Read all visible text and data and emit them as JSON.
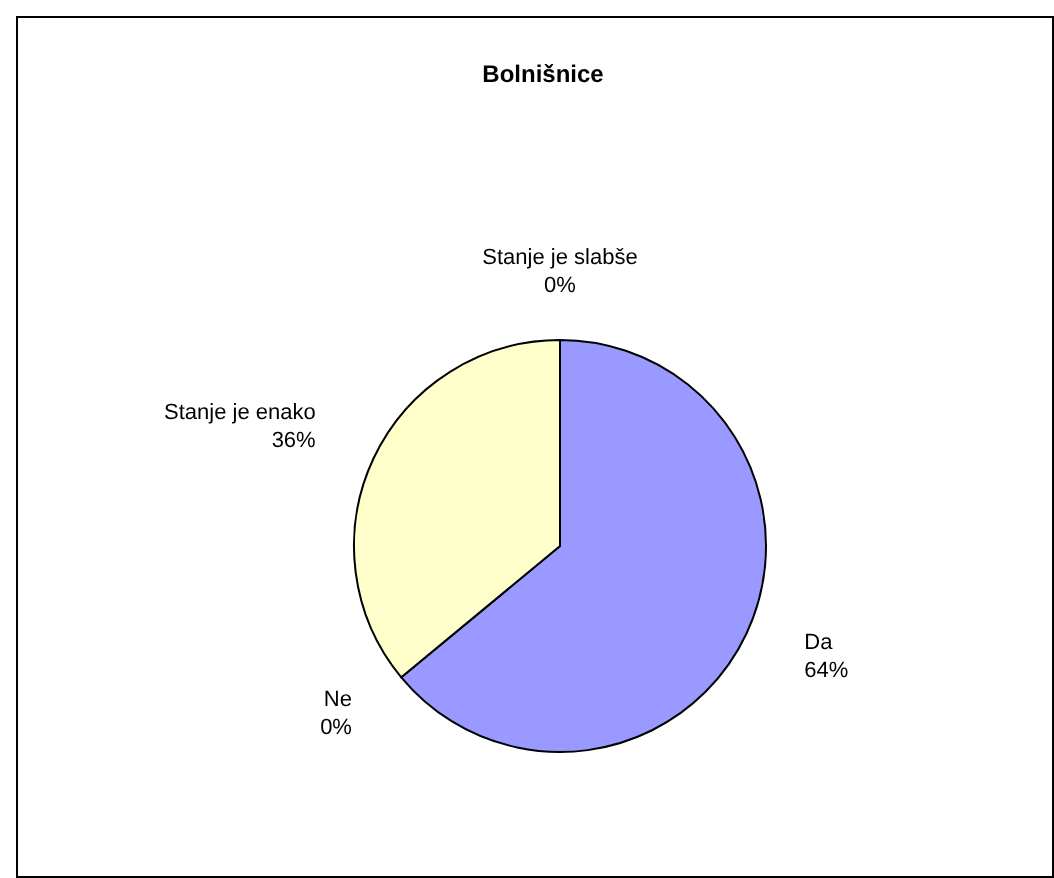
{
  "chart_data": {
    "type": "pie",
    "title": "Bolnišnice",
    "categories": [
      "Da",
      "Ne",
      "Stanje je enako",
      "Stanje je slabše"
    ],
    "values": [
      64,
      0,
      36,
      0
    ],
    "colors": [
      "#9999ff",
      null,
      "#ffffcc",
      null
    ],
    "value_labels": [
      "64%",
      "0%",
      "36%",
      "0%"
    ]
  }
}
